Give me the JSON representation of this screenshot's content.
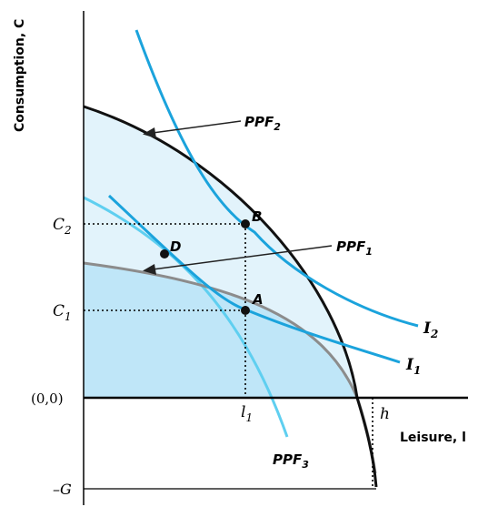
{
  "axes": {
    "y_label": "Consumption, C",
    "x_label": "Leisure, l",
    "origin_label": "(0,0)",
    "neg_g_label": "–G",
    "c2_label": "C",
    "c2_sub": "2",
    "c1_label": "C",
    "c1_sub": "1",
    "l1_label": "l",
    "l1_sub": "1",
    "h_label": "h"
  },
  "curves": {
    "ppf2_label": "PPF",
    "ppf2_sub": "2",
    "ppf1_label": "PPF",
    "ppf1_sub": "1",
    "ppf3_label": "PPF",
    "ppf3_sub": "3",
    "i2_label": "I",
    "i2_sub": "2",
    "i1_label": "I",
    "i1_sub": "1"
  },
  "points": {
    "a": "A",
    "b": "B",
    "d": "D"
  },
  "colors": {
    "axis": "#000000",
    "ppf2": "#111111",
    "ppf1": "#8c8c8c",
    "ppf3": "#5fcff0",
    "indifference": "#1ba3dc",
    "fill_outer": "#e2f3fb",
    "fill_inner": "#bfe6f8",
    "point": "#111111"
  }
}
